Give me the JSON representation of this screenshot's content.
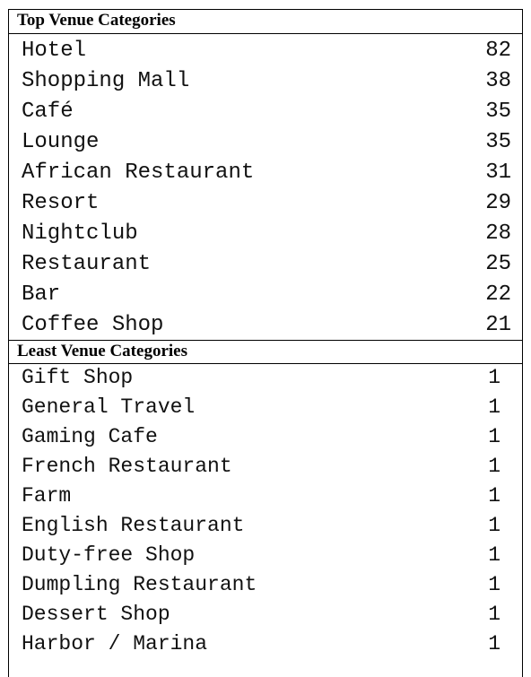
{
  "top_section": {
    "title": "Top Venue Categories",
    "rows": [
      {
        "category": "Hotel",
        "count": "82"
      },
      {
        "category": "Shopping Mall",
        "count": "38"
      },
      {
        "category": "Café",
        "count": "35"
      },
      {
        "category": "Lounge",
        "count": "35"
      },
      {
        "category": "African Restaurant",
        "count": "31"
      },
      {
        "category": "Resort",
        "count": "29"
      },
      {
        "category": "Nightclub",
        "count": "28"
      },
      {
        "category": "Restaurant",
        "count": "25"
      },
      {
        "category": "Bar",
        "count": "22"
      },
      {
        "category": "Coffee Shop",
        "count": "21"
      }
    ]
  },
  "least_section": {
    "title": "Least Venue Categories",
    "rows": [
      {
        "category": "Gift Shop",
        "count": "1"
      },
      {
        "category": "General Travel",
        "count": "1"
      },
      {
        "category": "Gaming Cafe",
        "count": "1"
      },
      {
        "category": "French Restaurant",
        "count": "1"
      },
      {
        "category": "Farm",
        "count": "1"
      },
      {
        "category": "English Restaurant",
        "count": "1"
      },
      {
        "category": "Duty-free Shop",
        "count": "1"
      },
      {
        "category": "Dumpling Restaurant",
        "count": "1"
      },
      {
        "category": "Dessert Shop",
        "count": "1"
      },
      {
        "category": "Harbor / Marina",
        "count": "1"
      }
    ]
  }
}
